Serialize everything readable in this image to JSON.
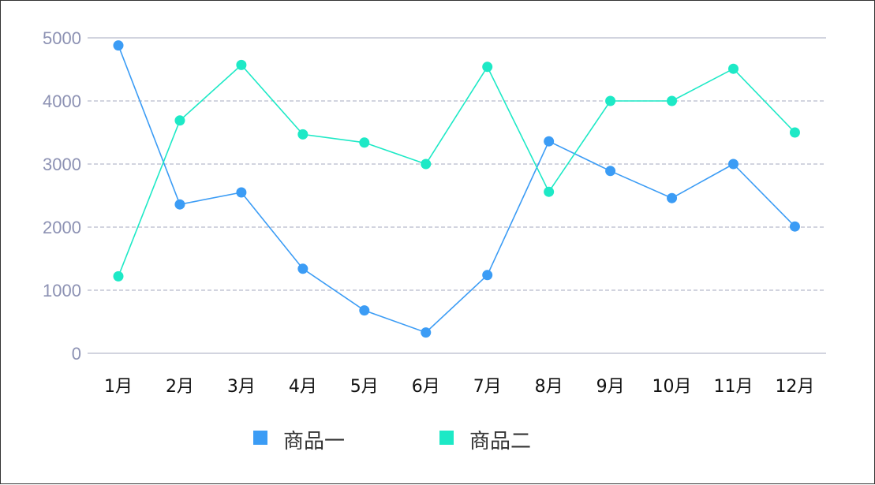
{
  "chart_data": {
    "type": "line",
    "categories": [
      "1月",
      "2月",
      "3月",
      "4月",
      "5月",
      "6月",
      "7月",
      "8月",
      "9月",
      "10月",
      "11月",
      "12月"
    ],
    "series": [
      {
        "name": "商品一",
        "color": "#3b9cf5",
        "values": [
          4880,
          2360,
          2550,
          1340,
          680,
          330,
          1240,
          3360,
          2890,
          2460,
          3000,
          2010
        ]
      },
      {
        "name": "商品二",
        "color": "#1de9c6",
        "values": [
          1220,
          3690,
          4570,
          3470,
          3340,
          3000,
          4540,
          2560,
          4000,
          4000,
          4510,
          3500
        ]
      }
    ],
    "ylim": [
      0,
      5000
    ],
    "yticks": [
      0,
      1000,
      2000,
      3000,
      4000,
      5000
    ],
    "grid": true,
    "legend_position": "bottom-center",
    "title": "",
    "xlabel": "",
    "ylabel": ""
  }
}
